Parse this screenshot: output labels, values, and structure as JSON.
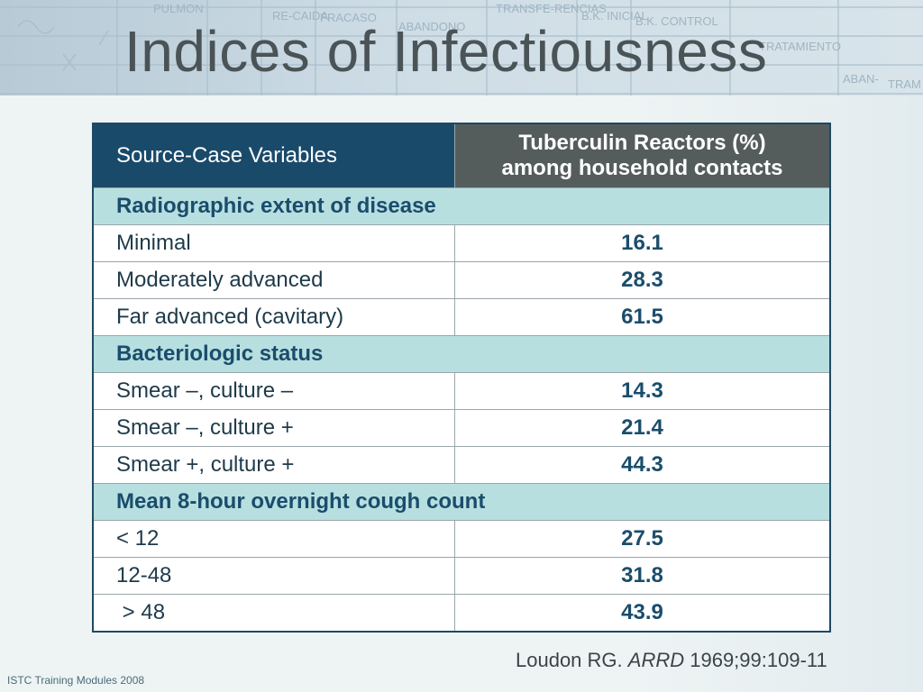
{
  "header": {
    "title": "Indices of Infectiousness",
    "background_words": [
      "PULMON",
      "RE-CAIDA",
      "FRACASO",
      "ABANDONO",
      "TRANSFE-RENCIAS",
      "B.K. INICIAL",
      "B.K. CONTROL",
      "TRATAMIENTO",
      "ABAN-",
      "TRAM"
    ]
  },
  "table": {
    "col1_header": "Source-Case Variables",
    "col2_header_line1": "Tuberculin Reactors (%)",
    "col2_header_line2": "among household contacts",
    "sections": [
      {
        "label": "Radiographic extent of disease",
        "rows": [
          {
            "variable": "Minimal",
            "value": "16.1"
          },
          {
            "variable": "Moderately advanced",
            "value": "28.3"
          },
          {
            "variable": "Far advanced (cavitary)",
            "value": "61.5"
          }
        ]
      },
      {
        "label": "Bacteriologic status",
        "rows": [
          {
            "variable": "Smear –, culture –",
            "value": "14.3"
          },
          {
            "variable": "Smear –, culture +",
            "value": "21.4"
          },
          {
            "variable": "Smear +, culture +",
            "value": "44.3"
          }
        ]
      },
      {
        "label": "Mean 8-hour overnight cough count",
        "rows": [
          {
            "variable": "< 12",
            "value": "27.5"
          },
          {
            "variable": "12-48",
            "value": "31.8"
          },
          {
            "variable": " > 48",
            "value": "43.9"
          }
        ]
      }
    ]
  },
  "citation": {
    "author": "Loudon RG.",
    "journal": "ARRD",
    "ref": "1969;99:109-11"
  },
  "footer": {
    "text": "ISTC Training Modules 2008"
  },
  "colors": {
    "header_left": "#1a4a6a",
    "header_right": "#555d5c",
    "section_band": "#b8dfe0",
    "value_text": "#1a4d6c"
  }
}
